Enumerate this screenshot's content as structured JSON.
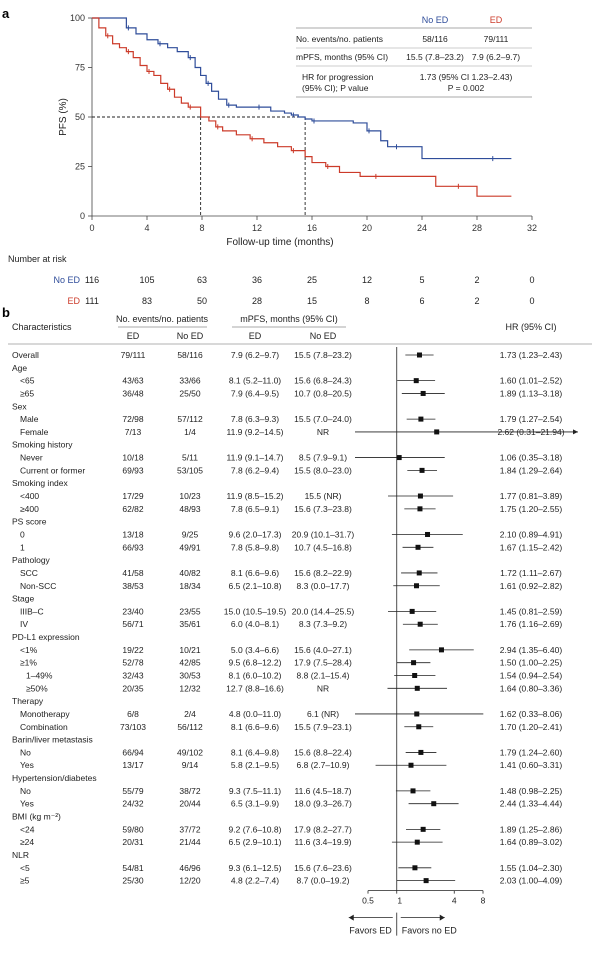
{
  "chart_data": [
    {
      "panel": "a",
      "type": "line",
      "xlabel": "Follow-up time (months)",
      "ylabel": "PFS (%)",
      "xlim": [
        0,
        32
      ],
      "ylim": [
        0,
        100
      ],
      "x_ticks": [
        "0",
        "4",
        "8",
        "12",
        "16",
        "20",
        "24",
        "28",
        "32"
      ],
      "y_ticks": [
        "0",
        "25",
        "50",
        "75",
        "100"
      ],
      "reference_y": 50,
      "reference_x": [
        7.9,
        15.5
      ],
      "series": [
        {
          "name": "No ED",
          "color": "#2f4d9a",
          "x": [
            0,
            1.8,
            2.5,
            3.2,
            4.0,
            4.8,
            5.5,
            6.2,
            7.0,
            7.5,
            7.9,
            8.3,
            8.7,
            9.2,
            9.8,
            10.5,
            11.2,
            12.0,
            13.0,
            14.0,
            14.5,
            15.0,
            15.5,
            16.0,
            18.0,
            19.0,
            20.0,
            21.0,
            21.5,
            22.0,
            24.0,
            27.0,
            29.0,
            30.5
          ],
          "y": [
            100,
            100,
            95,
            92,
            89,
            87,
            85,
            83,
            80,
            75,
            71,
            67,
            63,
            59,
            56,
            55,
            55,
            55,
            53,
            52,
            51,
            50,
            49,
            48,
            48,
            47,
            43,
            38,
            35,
            35,
            29,
            29,
            29,
            29
          ]
        },
        {
          "name": "ED",
          "color": "#cc3b2a",
          "x": [
            0,
            0.5,
            1.0,
            1.5,
            2.0,
            2.5,
            3.0,
            3.5,
            4.0,
            4.5,
            5.0,
            5.5,
            6.0,
            6.5,
            7.0,
            7.9,
            8.5,
            9.0,
            9.5,
            10.5,
            11.5,
            12.5,
            13.5,
            14.5,
            15.5,
            16.0,
            17.0,
            18.0,
            19.5,
            20.5,
            22.5,
            25.0,
            26.5,
            28.0,
            30.5
          ],
          "y": [
            100,
            95,
            91,
            87,
            85,
            83,
            80,
            76,
            73,
            71,
            67,
            64,
            60,
            57,
            55,
            50,
            48,
            45,
            43,
            41,
            39,
            37,
            35,
            33,
            30,
            27,
            25,
            22,
            20,
            20,
            20,
            15,
            15,
            10,
            10
          ]
        }
      ],
      "table": {
        "headers": [
          "",
          "No ED",
          "ED"
        ],
        "rows": [
          [
            "No. events/no. patients",
            "58/116",
            "79/111"
          ],
          [
            "mPFS, months (95% CI)",
            "15.5 (7.8–23.2)",
            "7.9 (6.2–9.7)"
          ]
        ],
        "hr_label_1": "HR for progression",
        "hr_label_2": "(95% CI); P value",
        "hr_value_1": "1.73 (95% CI 1.23–2.43)",
        "hr_value_2": "P = 0.002"
      },
      "risk_table": {
        "title": "Number at risk",
        "rows": [
          {
            "label": "No ED",
            "color": "#2f4d9a",
            "values": [
              "116",
              "105",
              "63",
              "36",
              "25",
              "12",
              "5",
              "2",
              "0"
            ]
          },
          {
            "label": "ED",
            "color": "#cc3b2a",
            "values": [
              "111",
              "83",
              "50",
              "28",
              "15",
              "8",
              "6",
              "2",
              "0"
            ]
          }
        ]
      }
    },
    {
      "panel": "b",
      "type": "forest",
      "headers": {
        "characteristics": "Characteristics",
        "events_group": "No. events/no. patients",
        "mpfs_group": "mPFS, months (95% CI)",
        "ed": "ED",
        "no_ed": "No ED",
        "hr": "HR (95% CI)"
      },
      "x_ticks": [
        "0.5",
        "1",
        "4",
        "8"
      ],
      "favors_left": "Favors ED",
      "favors_right": "Favors no ED",
      "rows": [
        {
          "label": "Overall",
          "ev_ed": "79/111",
          "ev_no": "58/116",
          "mp_ed": "7.9 (6.2–9.7)",
          "mp_no": "15.5 (7.8–23.2)",
          "hr_text": "1.73 (1.23–2.43)",
          "hr": 1.73,
          "lo": 1.23,
          "hi": 2.43
        },
        {
          "label": "Age",
          "group": true
        },
        {
          "label": "<65",
          "indent": 1,
          "ev_ed": "43/63",
          "ev_no": "33/66",
          "mp_ed": "8.1 (5.2–11.0)",
          "mp_no": "15.6 (6.8–24.3)",
          "hr_text": "1.60 (1.01–2.52)",
          "hr": 1.6,
          "lo": 1.01,
          "hi": 2.52
        },
        {
          "label": "≥65",
          "indent": 1,
          "ev_ed": "36/48",
          "ev_no": "25/50",
          "mp_ed": "7.9 (6.4–9.5)",
          "mp_no": "10.7 (0.8–20.5)",
          "hr_text": "1.89 (1.13–3.18)",
          "hr": 1.89,
          "lo": 1.13,
          "hi": 3.18
        },
        {
          "label": "Sex",
          "group": true
        },
        {
          "label": "Male",
          "indent": 1,
          "ev_ed": "72/98",
          "ev_no": "57/112",
          "mp_ed": "7.8 (6.3–9.3)",
          "mp_no": "15.5 (7.0–24.0)",
          "hr_text": "1.79 (1.27–2.54)",
          "hr": 1.79,
          "lo": 1.27,
          "hi": 2.54
        },
        {
          "label": "Female",
          "indent": 1,
          "ev_ed": "7/13",
          "ev_no": "1/4",
          "mp_ed": "11.9 (9.2–14.5)",
          "mp_no": "NR",
          "hr_text": "2.62 (0.31–21.94)",
          "hr": 2.62,
          "lo": 0.31,
          "hi": 21.94,
          "arrow": true
        },
        {
          "label": "Smoking history",
          "group": true
        },
        {
          "label": "Never",
          "indent": 1,
          "ev_ed": "10/18",
          "ev_no": "5/11",
          "mp_ed": "11.9 (9.1–14.7)",
          "mp_no": "8.5 (7.9–9.1)",
          "hr_text": "1.06 (0.35–3.18)",
          "hr": 1.06,
          "lo": 0.35,
          "hi": 3.18
        },
        {
          "label": "Current or former",
          "indent": 1,
          "ev_ed": "69/93",
          "ev_no": "53/105",
          "mp_ed": "7.8 (6.2–9.4)",
          "mp_no": "15.5 (8.0–23.0)",
          "hr_text": "1.84 (1.29–2.64)",
          "hr": 1.84,
          "lo": 1.29,
          "hi": 2.64
        },
        {
          "label": "Smoking index",
          "group": true
        },
        {
          "label": "<400",
          "indent": 1,
          "ev_ed": "17/29",
          "ev_no": "10/23",
          "mp_ed": "11.9 (8.5–15.2)",
          "mp_no": "15.5 (NR)",
          "hr_text": "1.77 (0.81–3.89)",
          "hr": 1.77,
          "lo": 0.81,
          "hi": 3.89
        },
        {
          "label": "≥400",
          "indent": 1,
          "ev_ed": "62/82",
          "ev_no": "48/93",
          "mp_ed": "7.8 (6.5–9.1)",
          "mp_no": "15.6 (7.3–23.8)",
          "hr_text": "1.75 (1.20–2.55)",
          "hr": 1.75,
          "lo": 1.2,
          "hi": 2.55
        },
        {
          "label": "PS score",
          "group": true
        },
        {
          "label": "0",
          "indent": 1,
          "ev_ed": "13/18",
          "ev_no": "9/25",
          "mp_ed": "9.6 (2.0–17.3)",
          "mp_no": "20.9 (10.1–31.7)",
          "hr_text": "2.10 (0.89–4.91)",
          "hr": 2.1,
          "lo": 0.89,
          "hi": 4.91
        },
        {
          "label": "1",
          "indent": 1,
          "ev_ed": "66/93",
          "ev_no": "49/91",
          "mp_ed": "7.8 (5.8–9.8)",
          "mp_no": "10.7 (4.5–16.8)",
          "hr_text": "1.67 (1.15–2.42)",
          "hr": 1.67,
          "lo": 1.15,
          "hi": 2.42
        },
        {
          "label": "Pathology",
          "group": true
        },
        {
          "label": "SCC",
          "indent": 1,
          "ev_ed": "41/58",
          "ev_no": "40/82",
          "mp_ed": "8.1 (6.6–9.6)",
          "mp_no": "15.6 (8.2–22.9)",
          "hr_text": "1.72 (1.11–2.67)",
          "hr": 1.72,
          "lo": 1.11,
          "hi": 2.67
        },
        {
          "label": "Non-SCC",
          "indent": 1,
          "ev_ed": "38/53",
          "ev_no": "18/34",
          "mp_ed": "6.5 (2.1–10.8)",
          "mp_no": "8.3 (0.0–17.7)",
          "hr_text": "1.61 (0.92–2.82)",
          "hr": 1.61,
          "lo": 0.92,
          "hi": 2.82
        },
        {
          "label": "Stage",
          "group": true
        },
        {
          "label": "IIIB–C",
          "indent": 1,
          "ev_ed": "23/40",
          "ev_no": "23/55",
          "mp_ed": "15.0 (10.5–19.5)",
          "mp_no": "20.0 (14.4–25.5)",
          "hr_text": "1.45 (0.81–2.59)",
          "hr": 1.45,
          "lo": 0.81,
          "hi": 2.59
        },
        {
          "label": "IV",
          "indent": 1,
          "ev_ed": "56/71",
          "ev_no": "35/61",
          "mp_ed": "6.0 (4.0–8.1)",
          "mp_no": "8.3 (7.3–9.2)",
          "hr_text": "1.76 (1.16–2.69)",
          "hr": 1.76,
          "lo": 1.16,
          "hi": 2.69
        },
        {
          "label": "PD-L1 expression",
          "group": true
        },
        {
          "label": "<1%",
          "indent": 1,
          "ev_ed": "19/22",
          "ev_no": "10/21",
          "mp_ed": "5.0 (3.4–6.6)",
          "mp_no": "15.6 (4.0–27.1)",
          "hr_text": "2.94 (1.35–6.40)",
          "hr": 2.94,
          "lo": 1.35,
          "hi": 6.4
        },
        {
          "label": "≥1%",
          "indent": 1,
          "ev_ed": "52/78",
          "ev_no": "42/85",
          "mp_ed": "9.5 (6.8–12.2)",
          "mp_no": "17.9 (7.5–28.4)",
          "hr_text": "1.50 (1.00–2.25)",
          "hr": 1.5,
          "lo": 1.0,
          "hi": 2.25
        },
        {
          "label": "1–49%",
          "indent": 2,
          "ev_ed": "32/43",
          "ev_no": "30/53",
          "mp_ed": "8.1 (6.0–10.2)",
          "mp_no": "8.8 (2.1–15.4)",
          "hr_text": "1.54 (0.94–2.54)",
          "hr": 1.54,
          "lo": 0.94,
          "hi": 2.54
        },
        {
          "label": "≥50%",
          "indent": 2,
          "ev_ed": "20/35",
          "ev_no": "12/32",
          "mp_ed": "12.7 (8.8–16.6)",
          "mp_no": "NR",
          "hr_text": "1.64 (0.80–3.36)",
          "hr": 1.64,
          "lo": 0.8,
          "hi": 3.36
        },
        {
          "label": "Therapy",
          "group": true
        },
        {
          "label": "Monotherapy",
          "indent": 1,
          "ev_ed": "6/8",
          "ev_no": "2/4",
          "mp_ed": "4.8 (0.0–11.0)",
          "mp_no": "6.1 (NR)",
          "hr_text": "1.62 (0.33–8.06)",
          "hr": 1.62,
          "lo": 0.33,
          "hi": 8.06
        },
        {
          "label": "Combination",
          "indent": 1,
          "ev_ed": "73/103",
          "ev_no": "56/112",
          "mp_ed": "8.1 (6.6–9.6)",
          "mp_no": "15.5 (7.9–23.1)",
          "hr_text": "1.70 (1.20–2.41)",
          "hr": 1.7,
          "lo": 1.2,
          "hi": 2.41
        },
        {
          "label": "Barin/liver metastasis",
          "group": true
        },
        {
          "label": "No",
          "indent": 1,
          "ev_ed": "66/94",
          "ev_no": "49/102",
          "mp_ed": "8.1 (6.4–9.8)",
          "mp_no": "15.6 (8.8–22.4)",
          "hr_text": "1.79 (1.24–2.60)",
          "hr": 1.79,
          "lo": 1.24,
          "hi": 2.6
        },
        {
          "label": "Yes",
          "indent": 1,
          "ev_ed": "13/17",
          "ev_no": "9/14",
          "mp_ed": "5.8 (2.1–9.5)",
          "mp_no": "6.8 (2.7–10.9)",
          "hr_text": "1.41 (0.60–3.31)",
          "hr": 1.41,
          "lo": 0.6,
          "hi": 3.31
        },
        {
          "label": "Hypertension/diabetes",
          "group": true
        },
        {
          "label": "No",
          "indent": 1,
          "ev_ed": "55/79",
          "ev_no": "38/72",
          "mp_ed": "9.3 (7.5–11.1)",
          "mp_no": "11.6 (4.5–18.7)",
          "hr_text": "1.48 (0.98–2.25)",
          "hr": 1.48,
          "lo": 0.98,
          "hi": 2.25
        },
        {
          "label": "Yes",
          "indent": 1,
          "ev_ed": "24/32",
          "ev_no": "20/44",
          "mp_ed": "6.5 (3.1–9.9)",
          "mp_no": "18.0 (9.3–26.7)",
          "hr_text": "2.44 (1.33–4.44)",
          "hr": 2.44,
          "lo": 1.33,
          "hi": 4.44
        },
        {
          "label": "BMI (kg m⁻²)",
          "group": true
        },
        {
          "label": "<24",
          "indent": 1,
          "ev_ed": "59/80",
          "ev_no": "37/72",
          "mp_ed": "9.2 (7.6–10.8)",
          "mp_no": "17.9 (8.2–27.7)",
          "hr_text": "1.89 (1.25–2.86)",
          "hr": 1.89,
          "lo": 1.25,
          "hi": 2.86
        },
        {
          "label": "≥24",
          "indent": 1,
          "ev_ed": "20/31",
          "ev_no": "21/44",
          "mp_ed": "6.5 (2.9–10.1)",
          "mp_no": "11.6 (3.4–19.9)",
          "hr_text": "1.64 (0.89–3.02)",
          "hr": 1.64,
          "lo": 0.89,
          "hi": 3.02
        },
        {
          "label": "NLR",
          "group": true
        },
        {
          "label": "<5",
          "indent": 1,
          "ev_ed": "54/81",
          "ev_no": "46/96",
          "mp_ed": "9.3 (6.1–12.5)",
          "mp_no": "15.6 (7.6–23.6)",
          "hr_text": "1.55 (1.04–2.30)",
          "hr": 1.55,
          "lo": 1.04,
          "hi": 2.3
        },
        {
          "label": "≥5",
          "indent": 1,
          "ev_ed": "25/30",
          "ev_no": "12/20",
          "mp_ed": "4.8 (2.2–7.4)",
          "mp_no": "8.7 (0.0–19.2)",
          "hr_text": "2.03 (1.00–4.09)",
          "hr": 2.03,
          "lo": 1.0,
          "hi": 4.09
        }
      ]
    }
  ]
}
